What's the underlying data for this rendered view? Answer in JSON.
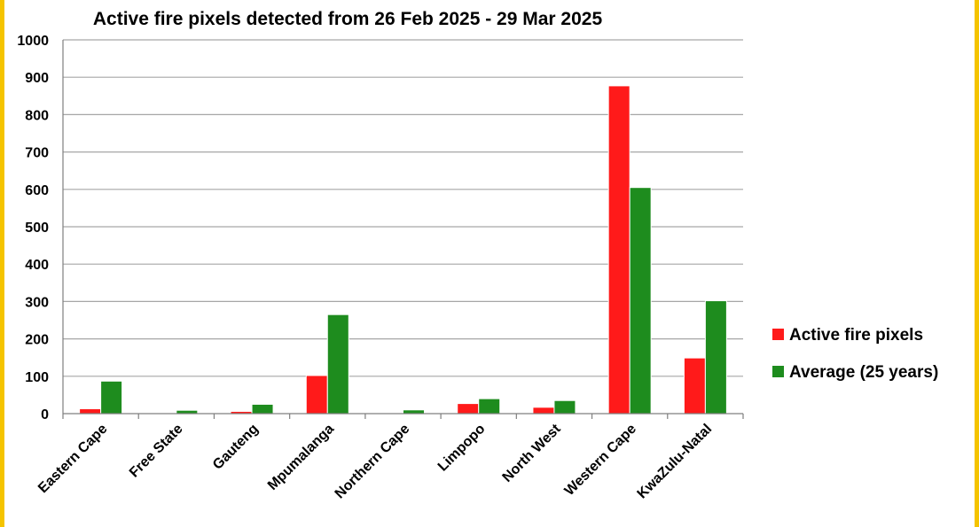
{
  "colors": {
    "frame": "#f5c400",
    "active": "#ff1a1a",
    "average": "#1e8c1e",
    "grid": "#a6a6a6"
  },
  "chart_data": {
    "type": "bar",
    "title": "Active fire pixels detected from 26 Feb 2025 - 29 Mar 2025",
    "xlabel": "",
    "ylabel": "",
    "ylim": [
      0,
      1000
    ],
    "yticks": [
      "0",
      "100",
      "200",
      "300",
      "400",
      "500",
      "600",
      "700",
      "800",
      "900",
      "1000"
    ],
    "grid": true,
    "legend_position": "right",
    "categories": [
      "Eastern Cape",
      "Free State",
      "Gauteng",
      "Mpumalanga",
      "Northern Cape",
      "Limpopo",
      "North West",
      "Western Cape",
      "KwaZulu-Natal"
    ],
    "series": [
      {
        "name": "Active fire pixels",
        "color": "#ff1a1a",
        "values": [
          13,
          1,
          6,
          102,
          0,
          27,
          17,
          877,
          149
        ]
      },
      {
        "name": "Average (25 years)",
        "color": "#1e8c1e",
        "values": [
          87,
          9,
          25,
          265,
          10,
          40,
          35,
          605,
          302
        ]
      }
    ]
  }
}
